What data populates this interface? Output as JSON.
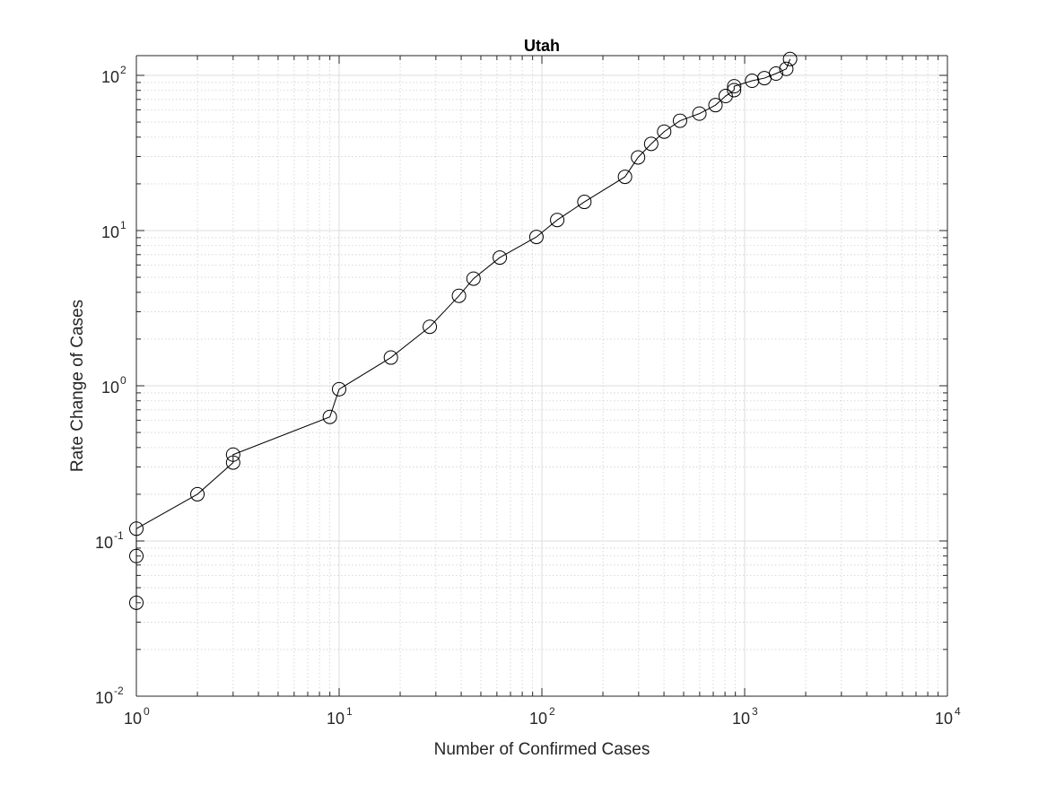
{
  "chart_data": {
    "type": "scatter",
    "title": "Utah",
    "xlabel": "Number of Confirmed Cases",
    "ylabel": "Rate Change of Cases",
    "xscale": "log",
    "yscale": "log",
    "xlim": [
      1,
      10000
    ],
    "ylim": [
      0.01,
      130
    ],
    "grid": true,
    "minor_grid": true,
    "marker": "circle",
    "line": true,
    "line_color": "#000000",
    "x_ticks": [
      {
        "base": "10",
        "exp": "0"
      },
      {
        "base": "10",
        "exp": "1"
      },
      {
        "base": "10",
        "exp": "2"
      },
      {
        "base": "10",
        "exp": "3"
      },
      {
        "base": "10",
        "exp": "4"
      }
    ],
    "y_ticks": [
      {
        "base": "10",
        "exp": "-2"
      },
      {
        "base": "10",
        "exp": "-1"
      },
      {
        "base": "10",
        "exp": "0"
      },
      {
        "base": "10",
        "exp": "1"
      },
      {
        "base": "10",
        "exp": "2"
      }
    ],
    "series": [
      {
        "name": "Utah",
        "points": [
          [
            1,
            0.04
          ],
          [
            1,
            0.08
          ],
          [
            1,
            0.12
          ],
          [
            2,
            0.2
          ],
          [
            3,
            0.32
          ],
          [
            3,
            0.36
          ],
          [
            9,
            0.63
          ],
          [
            10,
            0.95
          ],
          [
            18,
            1.52
          ],
          [
            28,
            2.4
          ],
          [
            39,
            3.8
          ],
          [
            46,
            4.9
          ],
          [
            62,
            6.7
          ],
          [
            94,
            9.1
          ],
          [
            119,
            11.7
          ],
          [
            162,
            15.3
          ],
          [
            257,
            22.2
          ],
          [
            298,
            29.6
          ],
          [
            346,
            36.2
          ],
          [
            401,
            43.4
          ],
          [
            480,
            51.0
          ],
          [
            598,
            56.7
          ],
          [
            718,
            64.3
          ],
          [
            806,
            73.6
          ],
          [
            887,
            80.3
          ],
          [
            888,
            85.1
          ],
          [
            1088,
            92.3
          ],
          [
            1251,
            96.0
          ],
          [
            1428,
            102.7
          ],
          [
            1605,
            110.1
          ],
          [
            1675,
            127.4
          ]
        ]
      }
    ]
  }
}
